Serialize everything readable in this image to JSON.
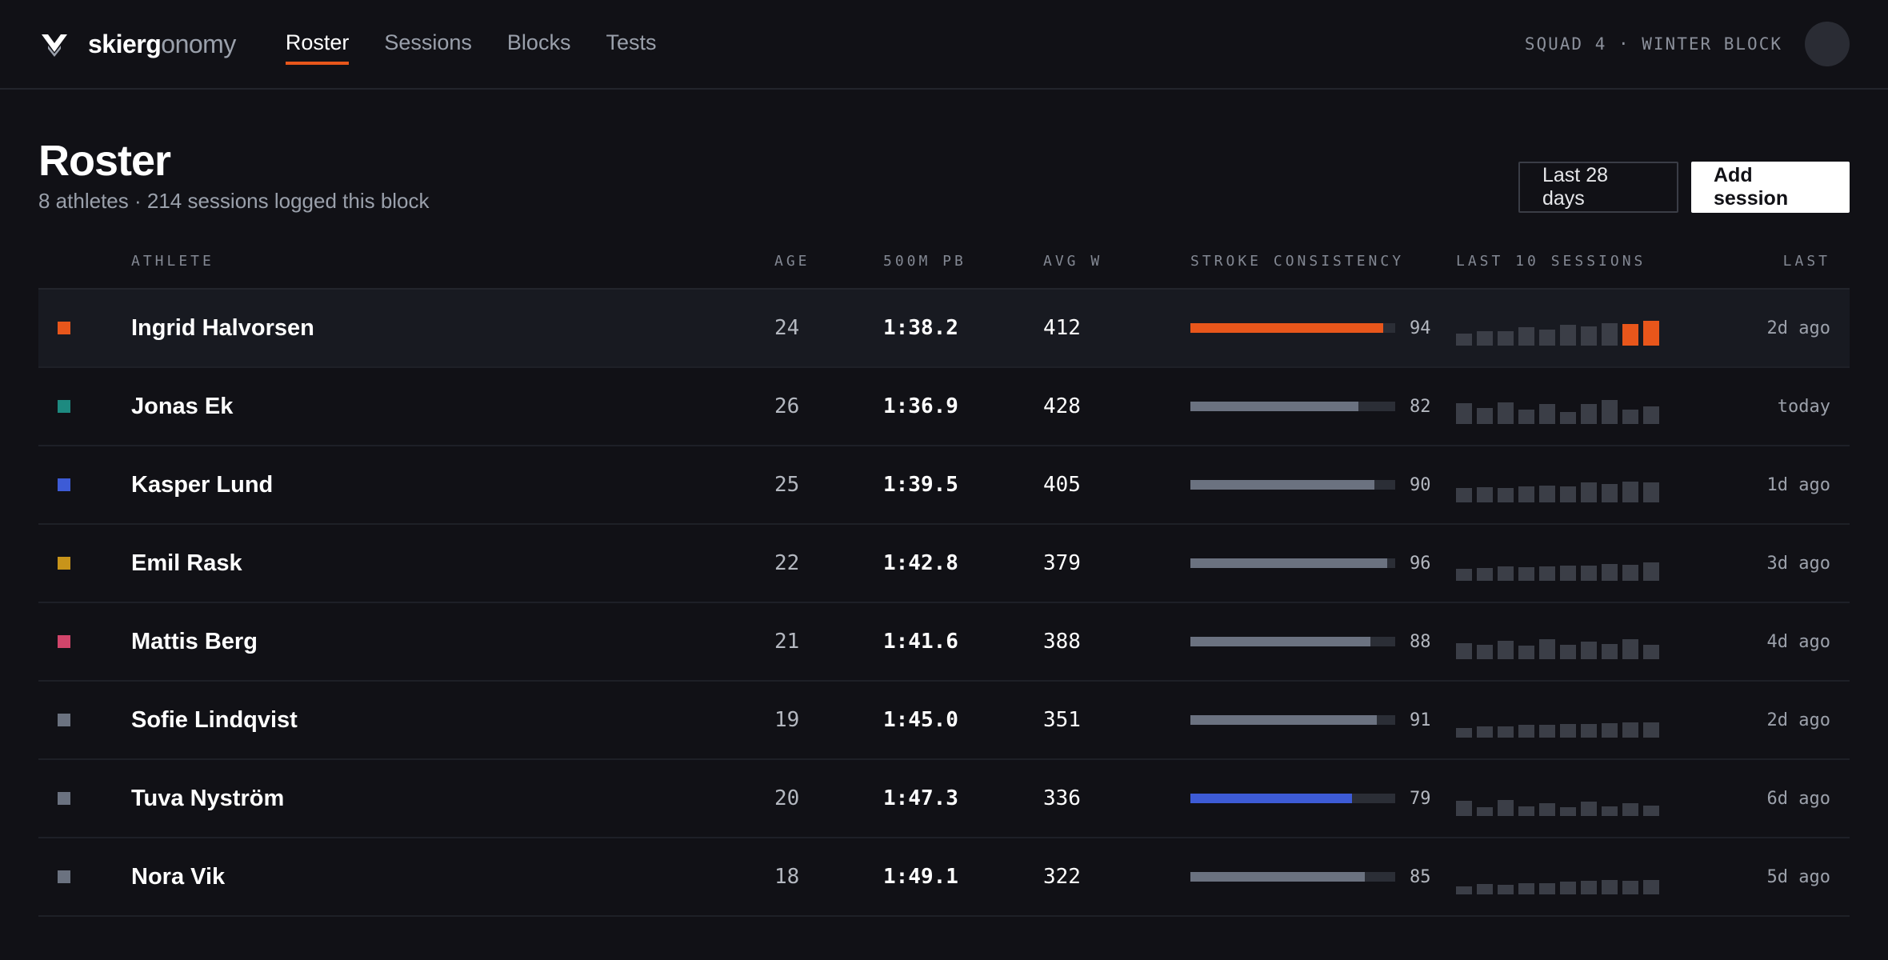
{
  "app": {
    "logo_bold": "skierg",
    "logo_light": "onomy",
    "nav": [
      {
        "label": "Roster",
        "active": true
      },
      {
        "label": "Sessions",
        "active": false
      },
      {
        "label": "Blocks",
        "active": false
      },
      {
        "label": "Tests",
        "active": false
      }
    ],
    "context": "SQUAD 4 · WINTER BLOCK"
  },
  "page": {
    "title": "Roster",
    "subtitle": "8 athletes · 214 sessions logged this block",
    "range_button": "Last 28 days",
    "add_button": "Add session"
  },
  "table": {
    "headers": {
      "athlete": "ATHLETE",
      "age": "AGE",
      "pb": "500M PB",
      "avgw": "AVG W",
      "consistency": "STROKE CONSISTENCY",
      "sessions": "LAST 10 SESSIONS",
      "last": "LAST"
    },
    "rows": [
      {
        "name": "Ingrid Halvorsen",
        "color": "#e8561b",
        "age": "24",
        "pb": "1:38.2",
        "avgw": "412",
        "consistency": 94,
        "bar_color": "#e8561b",
        "sessions": [
          0.34,
          0.4,
          0.4,
          0.52,
          0.46,
          0.58,
          0.54,
          0.64,
          0.62,
          0.7
        ],
        "highlight_last": 2,
        "last": "2d ago",
        "selected": true
      },
      {
        "name": "Jonas Ek",
        "color": "#1d8a80",
        "age": "26",
        "pb": "1:36.9",
        "avgw": "428",
        "consistency": 82,
        "bar_color": "#6b7280",
        "sessions": [
          0.6,
          0.46,
          0.62,
          0.4,
          0.56,
          0.34,
          0.56,
          0.68,
          0.42,
          0.5
        ],
        "highlight_last": 0,
        "last": "today",
        "selected": false
      },
      {
        "name": "Kasper Lund",
        "color": "#3d5bd6",
        "age": "25",
        "pb": "1:39.5",
        "avgw": "405",
        "consistency": 90,
        "bar_color": "#6b7280",
        "sessions": [
          0.4,
          0.44,
          0.42,
          0.46,
          0.48,
          0.46,
          0.56,
          0.52,
          0.6,
          0.56
        ],
        "highlight_last": 0,
        "last": "1d ago",
        "selected": false
      },
      {
        "name": "Emil Rask",
        "color": "#c8941a",
        "age": "22",
        "pb": "1:42.8",
        "avgw": "379",
        "consistency": 96,
        "bar_color": "#6b7280",
        "sessions": [
          0.34,
          0.36,
          0.4,
          0.38,
          0.42,
          0.44,
          0.44,
          0.48,
          0.46,
          0.52
        ],
        "highlight_last": 0,
        "last": "3d ago",
        "selected": false
      },
      {
        "name": "Mattis Berg",
        "color": "#d2456b",
        "age": "21",
        "pb": "1:41.6",
        "avgw": "388",
        "consistency": 88,
        "bar_color": "#6b7280",
        "sessions": [
          0.46,
          0.4,
          0.52,
          0.38,
          0.56,
          0.42,
          0.5,
          0.44,
          0.56,
          0.4
        ],
        "highlight_last": 0,
        "last": "4d ago",
        "selected": false
      },
      {
        "name": "Sofie Lindqvist",
        "color": "#6b7280",
        "age": "19",
        "pb": "1:45.0",
        "avgw": "351",
        "consistency": 91,
        "bar_color": "#6b7280",
        "sessions": [
          0.28,
          0.32,
          0.32,
          0.36,
          0.36,
          0.38,
          0.38,
          0.4,
          0.44,
          0.44
        ],
        "highlight_last": 0,
        "last": "2d ago",
        "selected": false
      },
      {
        "name": "Tuva Nyström",
        "color": "#6b7280",
        "age": "20",
        "pb": "1:47.3",
        "avgw": "336",
        "consistency": 79,
        "bar_color": "#3d5bd6",
        "sessions": [
          0.44,
          0.26,
          0.46,
          0.28,
          0.36,
          0.24,
          0.42,
          0.28,
          0.36,
          0.3
        ],
        "highlight_last": 0,
        "last": "6d ago",
        "selected": false
      },
      {
        "name": "Nora Vik",
        "color": "#6b7280",
        "age": "18",
        "pb": "1:49.1",
        "avgw": "322",
        "consistency": 85,
        "bar_color": "#6b7280",
        "sessions": [
          0.22,
          0.3,
          0.28,
          0.32,
          0.32,
          0.36,
          0.38,
          0.4,
          0.38,
          0.42
        ],
        "highlight_last": 0,
        "last": "5d ago",
        "selected": false
      }
    ]
  }
}
